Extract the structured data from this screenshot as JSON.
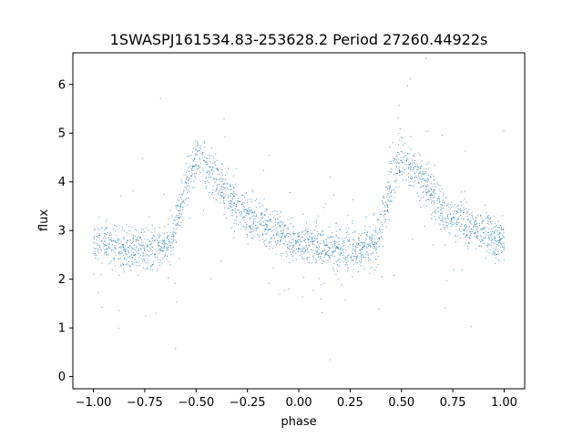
{
  "chart_data": {
    "type": "scatter",
    "title": "1SWASPJ161534.83-253628.2 Period 27260.44922s",
    "xlabel": "phase",
    "ylabel": "flux",
    "xlim": [
      -1.1,
      1.1
    ],
    "ylim": [
      -0.25,
      6.65
    ],
    "xticks": [
      -1.0,
      -0.75,
      -0.5,
      -0.25,
      0.0,
      0.25,
      0.5,
      0.75,
      1.0
    ],
    "xtick_labels": [
      "−1.00",
      "−0.75",
      "−0.50",
      "−0.25",
      "0.00",
      "0.25",
      "0.50",
      "0.75",
      "1.00"
    ],
    "yticks": [
      0,
      1,
      2,
      3,
      4,
      5,
      6
    ],
    "ytick_labels": [
      "0",
      "1",
      "2",
      "3",
      "4",
      "5",
      "6"
    ],
    "grid": false,
    "point_color": "#1f77b4",
    "series": [
      {
        "phase_profile": [
          [
            0.0,
            2.72
          ],
          [
            0.1,
            2.68
          ],
          [
            0.2,
            2.62
          ],
          [
            0.3,
            2.62
          ],
          [
            0.38,
            2.78
          ],
          [
            0.42,
            3.4
          ],
          [
            0.46,
            4.1
          ],
          [
            0.5,
            4.45
          ],
          [
            0.55,
            4.3
          ],
          [
            0.6,
            4.05
          ],
          [
            0.65,
            3.75
          ],
          [
            0.7,
            3.45
          ],
          [
            0.75,
            3.3
          ],
          [
            0.8,
            3.15
          ],
          [
            0.85,
            3.05
          ],
          [
            0.9,
            2.98
          ],
          [
            0.95,
            2.85
          ],
          [
            1.0,
            2.72
          ]
        ],
        "scatter_sigma": 0.22,
        "outlier_fraction": 0.05
      }
    ]
  }
}
